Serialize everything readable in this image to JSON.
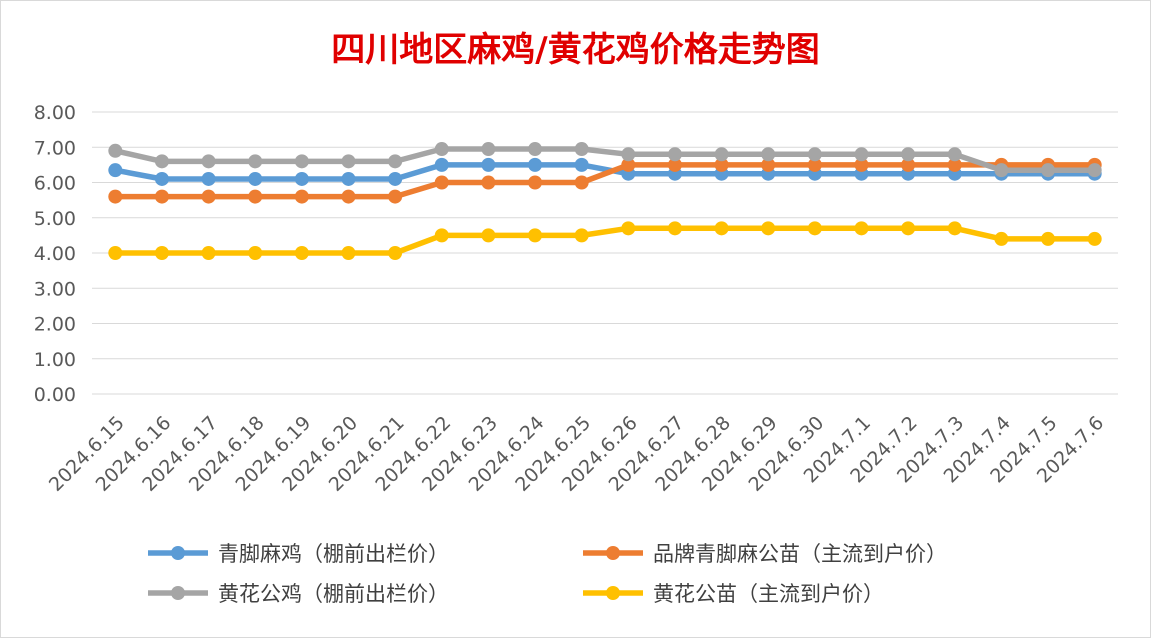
{
  "chart_data": {
    "type": "line",
    "title": "四川地区麻鸡/黄花鸡价格走势图",
    "categories": [
      "2024.6.15",
      "2024.6.16",
      "2024.6.17",
      "2024.6.18",
      "2024.6.19",
      "2024.6.20",
      "2024.6.21",
      "2024.6.22",
      "2024.6.23",
      "2024.6.24",
      "2024.6.25",
      "2024.6.26",
      "2024.6.27",
      "2024.6.28",
      "2024.6.29",
      "2024.6.30",
      "2024.7.1",
      "2024.7.2",
      "2024.7.3",
      "2024.7.4",
      "2024.7.5",
      "2024.7.6"
    ],
    "yticks": [
      "0.00",
      "1.00",
      "2.00",
      "3.00",
      "4.00",
      "5.00",
      "6.00",
      "7.00",
      "8.00"
    ],
    "ylim": [
      0,
      8
    ],
    "grid": true,
    "legend_position": "bottom",
    "series": [
      {
        "name": "青脚麻鸡（棚前出栏价）",
        "color": "#5b9bd5",
        "values": [
          6.35,
          6.1,
          6.1,
          6.1,
          6.1,
          6.1,
          6.1,
          6.5,
          6.5,
          6.5,
          6.5,
          6.25,
          6.25,
          6.25,
          6.25,
          6.25,
          6.25,
          6.25,
          6.25,
          6.25,
          6.25,
          6.25
        ]
      },
      {
        "name": "品牌青脚麻公苗（主流到户价）",
        "color": "#ed7d31",
        "values": [
          5.6,
          5.6,
          5.6,
          5.6,
          5.6,
          5.6,
          5.6,
          6.0,
          6.0,
          6.0,
          6.0,
          6.5,
          6.5,
          6.5,
          6.5,
          6.5,
          6.5,
          6.5,
          6.5,
          6.5,
          6.5,
          6.5
        ]
      },
      {
        "name": "黄花公鸡（棚前出栏价）",
        "color": "#a5a5a5",
        "values": [
          6.9,
          6.6,
          6.6,
          6.6,
          6.6,
          6.6,
          6.6,
          6.95,
          6.95,
          6.95,
          6.95,
          6.8,
          6.8,
          6.8,
          6.8,
          6.8,
          6.8,
          6.8,
          6.8,
          6.35,
          6.35,
          6.35
        ]
      },
      {
        "name": "黄花公苗（主流到户价）",
        "color": "#ffc000",
        "values": [
          4.0,
          4.0,
          4.0,
          4.0,
          4.0,
          4.0,
          4.0,
          4.5,
          4.5,
          4.5,
          4.5,
          4.7,
          4.7,
          4.7,
          4.7,
          4.7,
          4.7,
          4.7,
          4.7,
          4.4,
          4.4,
          4.4
        ]
      }
    ]
  }
}
